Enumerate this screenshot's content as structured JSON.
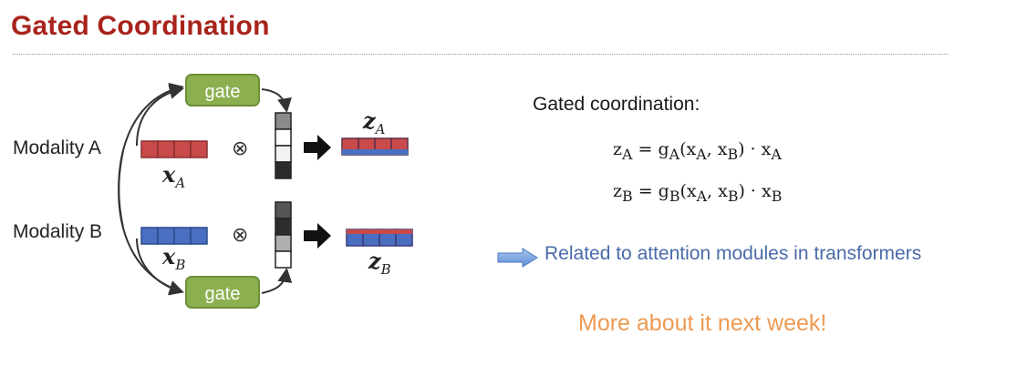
{
  "slide": {
    "title": "Gated Coordination"
  },
  "diagram": {
    "modality_a_label": "Modality A",
    "modality_b_label": "Modality B",
    "gate_top_label": "gate",
    "gate_bottom_label": "gate",
    "input_a_label": "x",
    "input_a_sub": "A",
    "input_b_label": "x",
    "input_b_sub": "B",
    "output_a_label": "z",
    "output_a_sub": "A",
    "output_b_label": "z",
    "output_b_sub": "B",
    "operator": "⊗",
    "colors": {
      "red_vector": "#c94a4a",
      "blue_vector": "#4a6fc1",
      "gate": "#8cb04f"
    }
  },
  "equations": {
    "heading": "Gated coordination:",
    "eq_a": "z_A = g_A(x_A, x_B) · x_A",
    "eq_b": "z_B = g_B(x_A, x_B) · x_B"
  },
  "notes": {
    "related": "Related to attention modules in transformers",
    "next_week": "More about it next week!"
  }
}
